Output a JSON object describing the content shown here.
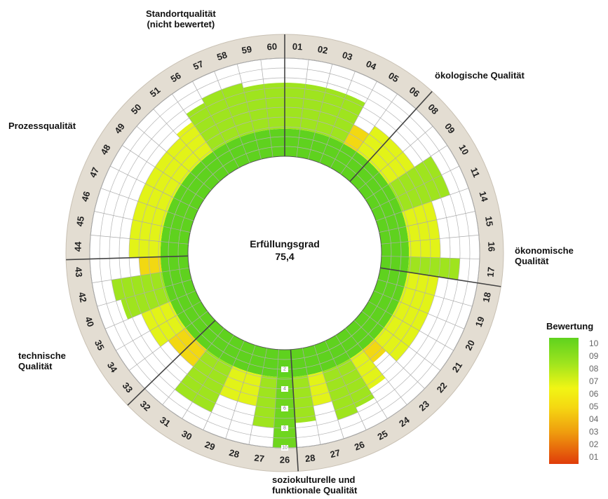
{
  "center": {
    "label": "Erfüllungsgrad",
    "value": "75,4"
  },
  "categories": [
    {
      "key": "standort",
      "label": "Standortqualität\n(nicht bewertet)"
    },
    {
      "key": "oekologisch",
      "label": "ökologische Qualität"
    },
    {
      "key": "oekonomisch",
      "label": "ökonomische\nQualität"
    },
    {
      "key": "sozio",
      "label": "soziokulturelle und\nfunktionale Qualität"
    },
    {
      "key": "technisch",
      "label": "technische\nQualität"
    },
    {
      "key": "prozess",
      "label": "Prozessqualität"
    }
  ],
  "legend": {
    "title": "Bewertung",
    "levels": [
      "10",
      "09",
      "08",
      "07",
      "06",
      "05",
      "04",
      "03",
      "02",
      "01"
    ],
    "colors": [
      "#5fd21e",
      "#7edc1e",
      "#a2e61e",
      "#cbef1a",
      "#f1f514",
      "#f5d812",
      "#f1b40e",
      "#ec8c0c",
      "#e6660a",
      "#e03c0a"
    ]
  },
  "chart_data": {
    "type": "polar-bar",
    "scale": {
      "min": 0,
      "max": 10,
      "ticks": [
        "2",
        "4",
        "6",
        "8",
        "10"
      ]
    },
    "segments": [
      {
        "label": "01",
        "value": 7.5
      },
      {
        "label": "02",
        "value": 7.5
      },
      {
        "label": "03",
        "value": 7.5
      },
      {
        "label": "04",
        "value": 7.5
      },
      {
        "label": "05",
        "value": 5
      },
      {
        "label": "06",
        "value": 6
      },
      {
        "label": "08",
        "value": 6
      },
      {
        "label": "09",
        "value": 6
      },
      {
        "label": "10",
        "value": 8
      },
      {
        "label": "11",
        "value": 8
      },
      {
        "label": "14",
        "value": 6
      },
      {
        "label": "15",
        "value": 6
      },
      {
        "label": "16",
        "value": 6
      },
      {
        "label": "17",
        "value": 8
      },
      {
        "label": "18",
        "value": 6
      },
      {
        "label": "19",
        "value": 6
      },
      {
        "label": "20",
        "value": 6
      },
      {
        "label": "21",
        "value": 6
      },
      {
        "label": "22",
        "value": 6
      },
      {
        "label": "23",
        "value": 4.5
      },
      {
        "label": "24",
        "value": 6.5
      },
      {
        "label": "25",
        "value": 7.5
      },
      {
        "label": "26",
        "value": 8
      },
      {
        "label": "27",
        "value": 6
      },
      {
        "label": "28",
        "value": 7.5
      },
      {
        "label": "26",
        "value": 10
      },
      {
        "label": "27",
        "value": 8
      },
      {
        "label": "28",
        "value": 6
      },
      {
        "label": "29",
        "value": 6
      },
      {
        "label": "30",
        "value": 8
      },
      {
        "label": "31",
        "value": 8
      },
      {
        "label": "32",
        "value": 5
      },
      {
        "label": "33",
        "value": 5
      },
      {
        "label": "34",
        "value": 6
      },
      {
        "label": "35",
        "value": 6
      },
      {
        "label": "40",
        "value": 7.5
      },
      {
        "label": "42",
        "value": 8
      },
      {
        "label": "43",
        "value": 5
      },
      {
        "label": "44",
        "value": 6
      },
      {
        "label": "45",
        "value": 6
      },
      {
        "label": "46",
        "value": 6
      },
      {
        "label": "47",
        "value": 6
      },
      {
        "label": "48",
        "value": 6
      },
      {
        "label": "49",
        "value": 6
      },
      {
        "label": "50",
        "value": 6
      },
      {
        "label": "51",
        "value": 6.5
      },
      {
        "label": "56",
        "value": 7.5
      },
      {
        "label": "57",
        "value": 8
      },
      {
        "label": "58",
        "value": 8
      },
      {
        "label": "59",
        "value": 7.5
      },
      {
        "label": "60",
        "value": 7.5
      }
    ],
    "category_dividers_after": [
      "60",
      "06",
      "17",
      "28",
      "32",
      "43"
    ]
  }
}
